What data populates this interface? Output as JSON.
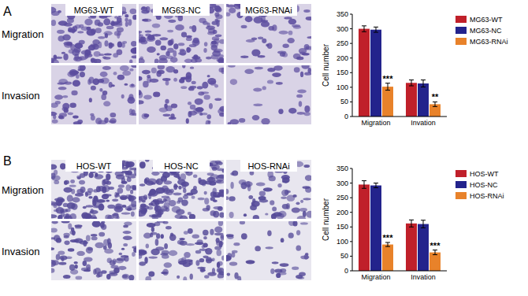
{
  "figure": {
    "panels": [
      {
        "label": "A",
        "columns": [
          "MG63-WT",
          "MG63-NC",
          "MG63-RNAi"
        ],
        "rows": [
          "Migration",
          "Invasion"
        ]
      },
      {
        "label": "B",
        "columns": [
          "HOS-WT",
          "HOS-NC",
          "HOS-RNAi"
        ],
        "rows": [
          "Migration",
          "Invasion"
        ]
      }
    ]
  },
  "chart_data": [
    {
      "type": "bar",
      "y_label": "Cell number",
      "categories": [
        "Migration",
        "Invation"
      ],
      "ylim": [
        0,
        350
      ],
      "yticks": [
        0,
        50,
        100,
        150,
        200,
        250,
        300,
        350
      ],
      "legend": "right",
      "series": [
        {
          "name": "MG63-WT",
          "color": "#c0202a",
          "values": [
            300,
            115
          ],
          "errors": [
            10,
            10
          ]
        },
        {
          "name": "MG63-NC",
          "color": "#23238c",
          "values": [
            297,
            113
          ],
          "errors": [
            9,
            12
          ]
        },
        {
          "name": "MG63-RNAi",
          "color": "#e8822a",
          "values": [
            102,
            42
          ],
          "errors": [
            12,
            8
          ],
          "significance": [
            "***",
            "**"
          ]
        }
      ]
    },
    {
      "type": "bar",
      "y_label": "Cell number",
      "categories": [
        "Migration",
        "Invation"
      ],
      "ylim": [
        0,
        350
      ],
      "yticks": [
        0,
        50,
        100,
        150,
        200,
        250,
        300,
        350
      ],
      "legend": "right",
      "series": [
        {
          "name": "HOS-WT",
          "color": "#c0202a",
          "values": [
            295,
            162
          ],
          "errors": [
            13,
            12
          ]
        },
        {
          "name": "HOS-NC",
          "color": "#23238c",
          "values": [
            292,
            160
          ],
          "errors": [
            8,
            13
          ]
        },
        {
          "name": "HOS-RNAi",
          "color": "#e8822a",
          "values": [
            90,
            63
          ],
          "errors": [
            7,
            8
          ],
          "significance": [
            "***",
            "***"
          ]
        }
      ]
    }
  ]
}
